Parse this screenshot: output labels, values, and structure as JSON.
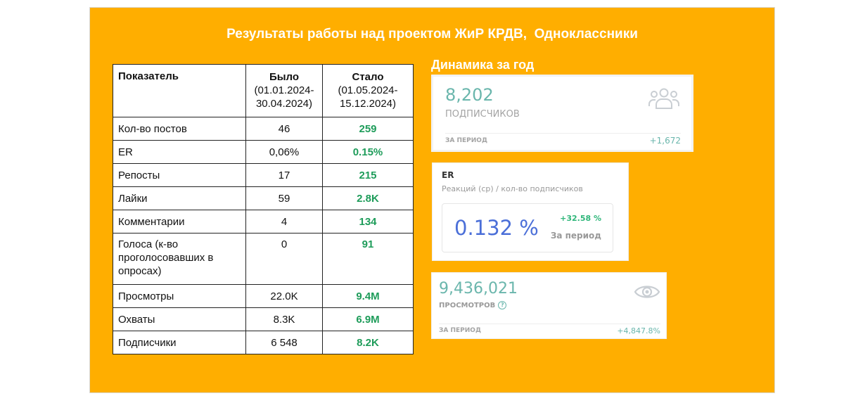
{
  "title": "Результаты работы над проектом ЖиР КРДВ,  Одноклассники",
  "table": {
    "headers": {
      "metric": "Показатель",
      "before_label": "Было",
      "before_period": "(01.01.2024-30.04.2024)",
      "after_label": "Стало",
      "after_period": "(01.05.2024-15.12.2024)"
    },
    "rows": [
      {
        "metric": "Кол-во постов",
        "before": "46",
        "after": "259"
      },
      {
        "metric": "ER",
        "before": "0,06%",
        "after": "0.15%"
      },
      {
        "metric": "Репосты",
        "before": "17",
        "after": "215"
      },
      {
        "metric": "Лайки",
        "before": "59",
        "after": "2.8K"
      },
      {
        "metric": "Комментарии",
        "before": "4",
        "after": "134"
      },
      {
        "metric": "Голоса (к-во проголосовавших в опросах)",
        "before": "0",
        "after": "91"
      },
      {
        "metric": "Просмотры",
        "before": "22.0K",
        "after": "9.4M"
      },
      {
        "metric": "Охваты",
        "before": "8.3K",
        "after": "6.9M"
      },
      {
        "metric": "Подписчики",
        "before": "6 548",
        "after": "8.2K"
      }
    ]
  },
  "dynamics_title": "Динамика за год",
  "subscribers_card": {
    "value": "8,202",
    "label": "подписчиков",
    "period_label": "ЗА ПЕРИОД",
    "change": "+1,672",
    "icon": "users-icon"
  },
  "er_card": {
    "title": "ER",
    "subtitle": "Реакций (ср) / кол-во подписчиков",
    "value": "0.132 %",
    "change": "+32.58 %",
    "period_label": "За период"
  },
  "views_card": {
    "value": "9,436,021",
    "label": "ПРОСМОТРОВ",
    "help": "?",
    "period_label": "ЗА ПЕРИОД",
    "change": "+4,847.8%",
    "icon": "eye-icon"
  },
  "colors": {
    "background": "#FFAE00",
    "positive": "#1e9c5a",
    "teal": "#6ab6ac",
    "er_blue": "#4b6fd8"
  }
}
